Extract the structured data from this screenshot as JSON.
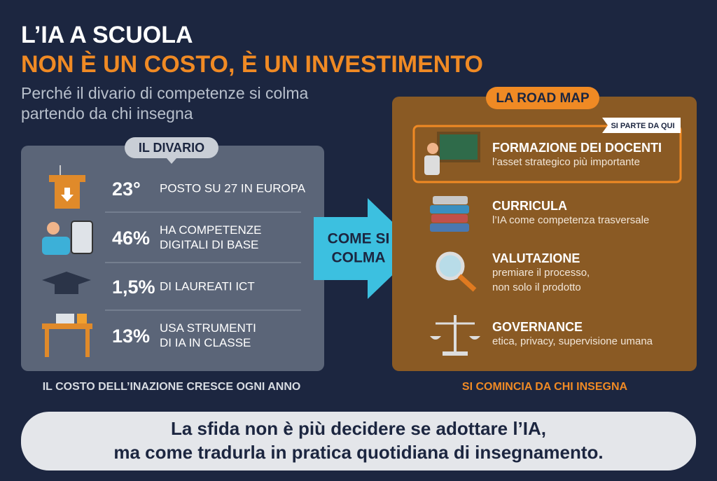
{
  "header": {
    "title_line1": "L’IA A SCUOLA",
    "title_line2": "NON È UN COSTO, È UN INVESTIMENTO",
    "subtitle_lines": [
      "Perché il divario di competenze si colma",
      "partendo da chi insegna"
    ]
  },
  "divario": {
    "label": "IL DIVARIO",
    "items": [
      {
        "figure": "23°",
        "text_lines": [
          "POSTO SU 27 IN EUROPA"
        ]
      },
      {
        "figure": "46%",
        "text_lines": [
          "HA COMPETENZE",
          "DIGITALI DI BASE"
        ]
      },
      {
        "figure": "1,5%",
        "text_lines": [
          "DI LAUREATI ICT"
        ]
      },
      {
        "figure": "13%",
        "text_lines": [
          "USA STRUMENTI",
          "DI IA IN CLASSE"
        ]
      }
    ],
    "footer": "IL COSTO DELL’INAZIONE CRESCE OGNI ANNO"
  },
  "arrow": {
    "lines": [
      "COME SI",
      "COLMA"
    ]
  },
  "roadmap": {
    "label": "LA ROAD MAP",
    "badge": "SI PARTE DA QUI",
    "items": [
      {
        "title": "FORMAZIONE DEI DOCENTI",
        "desc_lines": [
          "l’asset strategico più importante"
        ]
      },
      {
        "title": "CURRICULA",
        "desc_lines": [
          "l’IA come competenza trasversale"
        ]
      },
      {
        "title": "VALUTAZIONE",
        "desc_lines": [
          "premiare il processo,",
          "non solo il prodotto"
        ]
      },
      {
        "title": "GOVERNANCE",
        "desc_lines": [
          "etica, privacy, supervisione umana"
        ]
      }
    ],
    "footer": "SI COMINCIA DA CHI INSEGNA"
  },
  "conclusion": {
    "lines": [
      "La sfida non è più decidere se adottare l’IA,",
      "ma come tradurla in pratica quotidiana di insegnamento."
    ]
  }
}
